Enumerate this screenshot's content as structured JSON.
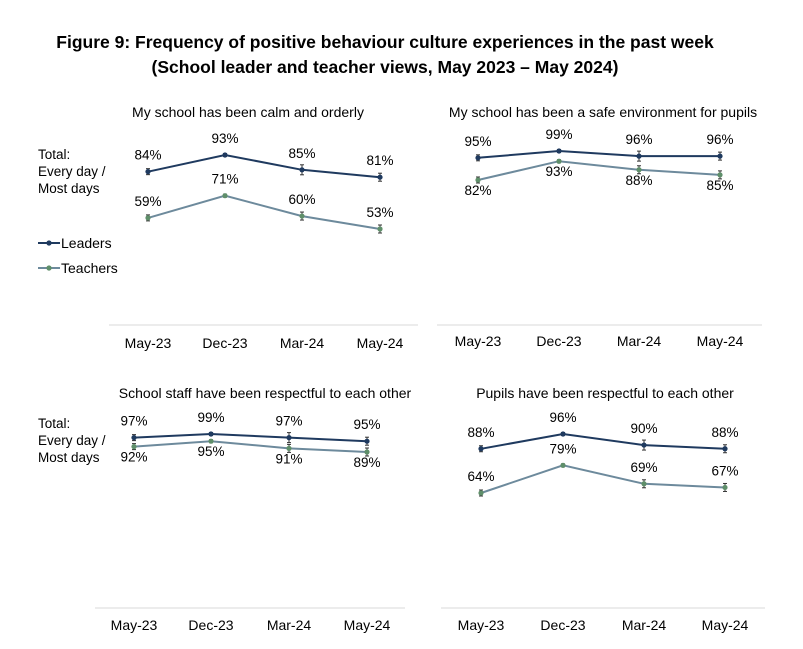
{
  "title": {
    "line1": "Figure 9: Frequency of positive behaviour culture experiences in the past week",
    "line2": "(School leader and teacher views, May 2023 – May 2024)"
  },
  "side_label": [
    "Total:",
    "Every day /",
    "Most days"
  ],
  "legend": [
    {
      "label": "Leaders",
      "color": "#1f3a5f"
    },
    {
      "label": "Teachers",
      "color": "#6d8a9c"
    }
  ],
  "colors": {
    "leaders_line": "#1f3a5f",
    "teachers_line": "#6d8a9c",
    "teachers_marker": "#5f8f6a",
    "axis": "#d9d9d9"
  },
  "chart_data": [
    {
      "type": "line",
      "title": "My school has been calm and orderly",
      "categories": [
        "May-23",
        "Dec-23",
        "Mar-24",
        "May-24"
      ],
      "series": [
        {
          "name": "Leaders",
          "values": [
            84,
            93,
            85,
            81
          ],
          "labels": [
            "84%",
            "93%",
            "85%",
            "81%"
          ]
        },
        {
          "name": "Teachers",
          "values": [
            59,
            71,
            60,
            53
          ],
          "labels": [
            "59%",
            "71%",
            "60%",
            "53%"
          ]
        }
      ]
    },
    {
      "type": "line",
      "title": "My school has been a safe environment for pupils",
      "categories": [
        "May-23",
        "Dec-23",
        "Mar-24",
        "May-24"
      ],
      "series": [
        {
          "name": "Leaders",
          "values": [
            95,
            99,
            96,
            96
          ],
          "labels": [
            "95%",
            "99%",
            "96%",
            "96%"
          ]
        },
        {
          "name": "Teachers",
          "values": [
            82,
            93,
            88,
            85
          ],
          "labels": [
            "82%",
            "93%",
            "88%",
            "85%"
          ]
        }
      ]
    },
    {
      "type": "line",
      "title": "School staff have been respectful to each other",
      "categories": [
        "May-23",
        "Dec-23",
        "Mar-24",
        "May-24"
      ],
      "series": [
        {
          "name": "Leaders",
          "values": [
            97,
            99,
            97,
            95
          ],
          "labels": [
            "97%",
            "99%",
            "97%",
            "95%"
          ]
        },
        {
          "name": "Teachers",
          "values": [
            92,
            95,
            91,
            89
          ],
          "labels": [
            "92%",
            "95%",
            "91%",
            "89%"
          ]
        }
      ]
    },
    {
      "type": "line",
      "title": "Pupils have been respectful to each other",
      "categories": [
        "May-23",
        "Dec-23",
        "Mar-24",
        "May-24"
      ],
      "series": [
        {
          "name": "Leaders",
          "values": [
            88,
            96,
            90,
            88
          ],
          "labels": [
            "88%",
            "96%",
            "90%",
            "88%"
          ]
        },
        {
          "name": "Teachers",
          "values": [
            64,
            79,
            69,
            67
          ],
          "labels": [
            "64%",
            "79%",
            "69%",
            "67%"
          ]
        }
      ]
    }
  ]
}
